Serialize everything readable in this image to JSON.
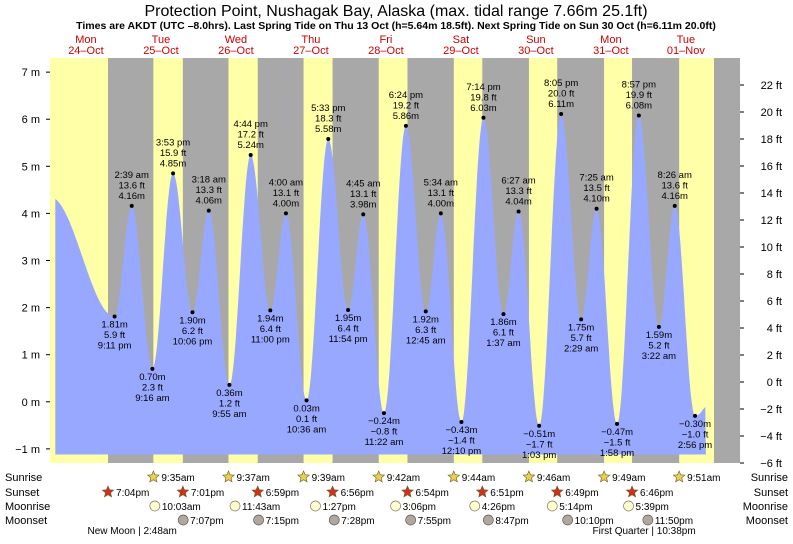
{
  "title": "Protection Point, Nushagak Bay, Alaska (max. tidal range 7.66m 25.1ft)",
  "subtitle": "Times are AKDT (UTC –8.0hrs). Last Spring Tide on Thu 13 Oct (h=5.64m 18.5ft). Next Spring Tide on Sun 30 Oct (h=6.11m 20.0ft)",
  "colors": {
    "day": "#ffffa8",
    "night": "#a8a8a8",
    "tide_fill": "#99a8ff",
    "day_label": "#cc0000",
    "sun_icon": "#e8d050",
    "sunset_icon": "#d03020",
    "moonrise_icon": "#fffed0",
    "moonset_icon": "#b0a8a0"
  },
  "chart_data": {
    "type": "area",
    "time_range_hours": [
      -23.5,
      189.0
    ],
    "ylim_m": [
      -1.3,
      7.3
    ],
    "ylim_ft": [
      -6,
      24
    ],
    "left_ticks_m": [
      -1,
      0,
      1,
      2,
      3,
      4,
      5,
      6,
      7
    ],
    "left_tick_labels": [
      "−1 m",
      "0 m",
      "1 m",
      "2 m",
      "3 m",
      "4 m",
      "5 m",
      "6 m",
      "7 m"
    ],
    "right_ticks_ft": [
      -6,
      -4,
      -2,
      0,
      2,
      4,
      6,
      8,
      10,
      12,
      14,
      16,
      18,
      20,
      22
    ],
    "right_tick_labels": [
      "−6 ft",
      "−4 ft",
      "−2 ft",
      "0 ft",
      "2 ft",
      "4 ft",
      "6 ft",
      "8 ft",
      "10 ft",
      "12 ft",
      "14 ft",
      "16 ft",
      "18 ft",
      "20 ft",
      "22 ft"
    ],
    "curve_start": {
      "t": -23.5,
      "m": 4.35
    },
    "curve_end": {
      "t": 189.0,
      "m": 0.05
    },
    "days": [
      {
        "dow": "Mon",
        "date": "24–Oct",
        "center_t": -12.0
      },
      {
        "dow": "Tue",
        "date": "25–Oct",
        "center_t": 12.0
      },
      {
        "dow": "Wed",
        "date": "26–Oct",
        "center_t": 36.0
      },
      {
        "dow": "Thu",
        "date": "27–Oct",
        "center_t": 60.0
      },
      {
        "dow": "Fri",
        "date": "28–Oct",
        "center_t": 84.0
      },
      {
        "dow": "Sat",
        "date": "29–Oct",
        "center_t": 108.0
      },
      {
        "dow": "Sun",
        "date": "30–Oct",
        "center_t": 132.0
      },
      {
        "dow": "Mon",
        "date": "31–Oct",
        "center_t": 156.0
      },
      {
        "dow": "Tue",
        "date": "01–Nov",
        "center_t": 180.0
      }
    ],
    "daylight_segments": [
      [
        -23.5,
        -4.93
      ],
      [
        9.58,
        19.02
      ],
      [
        33.62,
        42.98
      ],
      [
        57.65,
        66.93
      ],
      [
        81.7,
        90.9
      ],
      [
        105.73,
        114.85
      ],
      [
        129.77,
        138.82
      ],
      [
        153.82,
        162.77
      ],
      [
        177.85,
        189.0
      ]
    ],
    "tides": [
      {
        "t": -2.82,
        "m": 1.81,
        "ft": "5.9 ft",
        "time": "9:11 pm",
        "type": "low"
      },
      {
        "t": 2.65,
        "m": 4.16,
        "ft": "13.6 ft",
        "time": "2:39 am",
        "type": "high"
      },
      {
        "t": 9.27,
        "m": 0.7,
        "ft": "2.3 ft",
        "time": "9:16 am",
        "type": "low"
      },
      {
        "t": 15.88,
        "m": 4.85,
        "ft": "15.9 ft",
        "time": "3:53 pm",
        "type": "high"
      },
      {
        "t": 22.1,
        "m": 1.9,
        "ft": "6.2 ft",
        "time": "10:06 pm",
        "type": "low"
      },
      {
        "t": 27.3,
        "m": 4.06,
        "ft": "13.3 ft",
        "time": "3:18 am",
        "type": "high"
      },
      {
        "t": 33.92,
        "m": 0.36,
        "ft": "1.2 ft",
        "time": "9:55 am",
        "type": "low"
      },
      {
        "t": 40.73,
        "m": 5.24,
        "ft": "17.2 ft",
        "time": "4:44 pm",
        "type": "high"
      },
      {
        "t": 47.0,
        "m": 1.94,
        "ft": "6.4 ft",
        "time": "11:00 pm",
        "type": "low"
      },
      {
        "t": 52.0,
        "m": 4.0,
        "ft": "13.1 ft",
        "time": "4:00 am",
        "type": "high"
      },
      {
        "t": 58.6,
        "m": 0.03,
        "ft": "0.1 ft",
        "time": "10:36 am",
        "type": "low"
      },
      {
        "t": 65.55,
        "m": 5.58,
        "ft": "18.3 ft",
        "time": "5:33 pm",
        "type": "high"
      },
      {
        "t": 71.9,
        "m": 1.95,
        "ft": "6.4 ft",
        "time": "11:54 pm",
        "type": "low"
      },
      {
        "t": 76.75,
        "m": 3.98,
        "ft": "13.1 ft",
        "time": "4:45 am",
        "type": "high"
      },
      {
        "t": 83.37,
        "m": -0.24,
        "ft": "−0.8 ft",
        "time": "11:22 am",
        "type": "low"
      },
      {
        "t": 90.4,
        "m": 5.86,
        "ft": "19.2 ft",
        "time": "6:24 pm",
        "type": "high"
      },
      {
        "t": 96.75,
        "m": 1.92,
        "ft": "6.3 ft",
        "time": "12:45 am",
        "type": "low"
      },
      {
        "t": 101.57,
        "m": 4.0,
        "ft": "13.1 ft",
        "time": "5:34 am",
        "type": "high"
      },
      {
        "t": 108.17,
        "m": -0.43,
        "ft": "−1.4 ft",
        "time": "12:10 pm",
        "type": "low"
      },
      {
        "t": 115.23,
        "m": 6.03,
        "ft": "19.8 ft",
        "time": "7:14 pm",
        "type": "high"
      },
      {
        "t": 121.62,
        "m": 1.86,
        "ft": "6.1 ft",
        "time": "1:37 am",
        "type": "low"
      },
      {
        "t": 126.45,
        "m": 4.04,
        "ft": "13.3 ft",
        "time": "6:27 am",
        "type": "high"
      },
      {
        "t": 133.05,
        "m": -0.51,
        "ft": "−1.7 ft",
        "time": "1:03 pm",
        "type": "low"
      },
      {
        "t": 140.08,
        "m": 6.11,
        "ft": "20.0 ft",
        "time": "8:05 pm",
        "type": "high"
      },
      {
        "t": 146.48,
        "m": 1.75,
        "ft": "5.7 ft",
        "time": "2:29 am",
        "type": "low"
      },
      {
        "t": 151.42,
        "m": 4.1,
        "ft": "13.5 ft",
        "time": "7:25 am",
        "type": "high"
      },
      {
        "t": 157.97,
        "m": -0.47,
        "ft": "−1.5 ft",
        "time": "1:58 pm",
        "type": "low"
      },
      {
        "t": 164.95,
        "m": 6.08,
        "ft": "19.9 ft",
        "time": "8:57 pm",
        "type": "high"
      },
      {
        "t": 171.37,
        "m": 1.59,
        "ft": "5.2 ft",
        "time": "3:22 am",
        "type": "low"
      },
      {
        "t": 176.43,
        "m": 4.16,
        "ft": "13.6 ft",
        "time": "8:26 am",
        "type": "high"
      },
      {
        "t": 182.93,
        "m": -0.3,
        "ft": "−1.0 ft",
        "time": "2:56 pm",
        "type": "low"
      }
    ]
  },
  "events": {
    "row_labels": [
      "Sunrise",
      "Sunset",
      "Moonrise",
      "Moonset"
    ],
    "sunrise": [
      {
        "t": 9.58,
        "label": "9:35am"
      },
      {
        "t": 33.62,
        "label": "9:37am"
      },
      {
        "t": 57.65,
        "label": "9:39am"
      },
      {
        "t": 81.7,
        "label": "9:42am"
      },
      {
        "t": 105.73,
        "label": "9:44am"
      },
      {
        "t": 129.77,
        "label": "9:46am"
      },
      {
        "t": 153.82,
        "label": "9:49am"
      },
      {
        "t": 177.85,
        "label": "9:51am"
      }
    ],
    "sunset": [
      {
        "t": -4.93,
        "label": "7:04pm"
      },
      {
        "t": 19.02,
        "label": "7:01pm"
      },
      {
        "t": 42.98,
        "label": "6:59pm"
      },
      {
        "t": 66.93,
        "label": "6:56pm"
      },
      {
        "t": 90.9,
        "label": "6:54pm"
      },
      {
        "t": 114.85,
        "label": "6:51pm"
      },
      {
        "t": 138.82,
        "label": "6:49pm"
      },
      {
        "t": 162.77,
        "label": "6:46pm"
      }
    ],
    "moonrise": [
      {
        "t": 10.05,
        "label": "10:03am"
      },
      {
        "t": 35.72,
        "label": "11:43am"
      },
      {
        "t": 61.45,
        "label": "1:27pm"
      },
      {
        "t": 87.1,
        "label": "3:06pm"
      },
      {
        "t": 112.43,
        "label": "4:26pm"
      },
      {
        "t": 137.23,
        "label": "5:14pm"
      },
      {
        "t": 161.65,
        "label": "5:39pm"
      }
    ],
    "moonset": [
      {
        "t": 19.12,
        "label": "7:07pm"
      },
      {
        "t": 43.25,
        "label": "7:15pm"
      },
      {
        "t": 67.47,
        "label": "7:28pm"
      },
      {
        "t": 91.92,
        "label": "7:55pm"
      },
      {
        "t": 116.78,
        "label": "8:47pm"
      },
      {
        "t": 142.17,
        "label": "10:10pm"
      },
      {
        "t": 167.83,
        "label": "11:50pm"
      }
    ],
    "moon_phases": [
      {
        "t": 2.8,
        "label": "New Moon | 2:48am"
      },
      {
        "t": 166.63,
        "label": "First Quarter | 10:38pm"
      }
    ]
  }
}
